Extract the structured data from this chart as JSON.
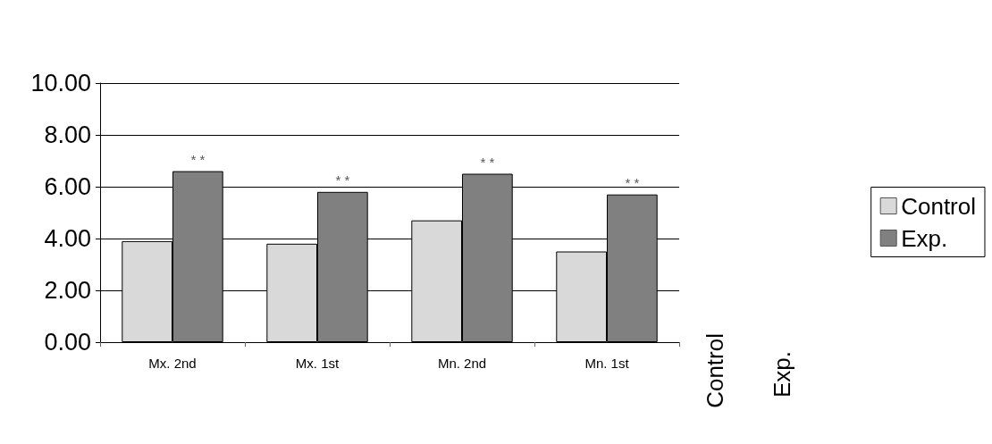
{
  "chart_data": {
    "type": "bar",
    "categories": [
      "Mx. 2nd",
      "Mx. 1st",
      "Mn. 2nd",
      "Mn. 1st"
    ],
    "series": [
      {
        "name": "Control",
        "color": "#d9d9d9",
        "values": [
          3.9,
          3.8,
          4.7,
          3.5
        ]
      },
      {
        "name": "Exp.",
        "color": "#808080",
        "values": [
          6.6,
          5.8,
          6.5,
          5.7
        ]
      }
    ],
    "ylim": [
      0,
      10
    ],
    "yticks": [
      {
        "value": 0,
        "label": "0.00"
      },
      {
        "value": 2,
        "label": "2.00"
      },
      {
        "value": 4,
        "label": "4.00"
      },
      {
        "value": 6,
        "label": "6.00"
      },
      {
        "value": 8,
        "label": "8.00"
      },
      {
        "value": 10,
        "label": "10.00"
      }
    ],
    "grid": "y",
    "legend": "right",
    "annotations": [
      {
        "text": "* *",
        "x": "Mx. 2nd",
        "y": 6.6
      },
      {
        "text": "* *",
        "x": "Mx. 1st",
        "y": 5.8
      },
      {
        "text": "* *",
        "x": "Mn. 2nd",
        "y": 6.5
      },
      {
        "text": "* *",
        "x": "Mn. 1st",
        "y": 5.7
      }
    ]
  }
}
